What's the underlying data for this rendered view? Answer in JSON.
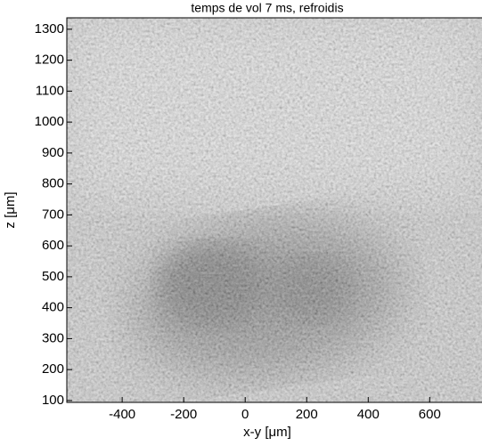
{
  "chart_data": {
    "type": "image",
    "title": "temps de vol 7 ms, refroidis",
    "x_label": "x-y [μm]",
    "y_label": "z [μm]",
    "xlim": [
      -580,
      770
    ],
    "ylim": [
      94,
      1337
    ],
    "xticks": [
      -400,
      -200,
      0,
      200,
      400,
      600
    ],
    "yticks": [
      100,
      200,
      300,
      400,
      500,
      600,
      700,
      800,
      900,
      1000,
      1100,
      1200,
      1300
    ],
    "colormap": "gray"
  }
}
